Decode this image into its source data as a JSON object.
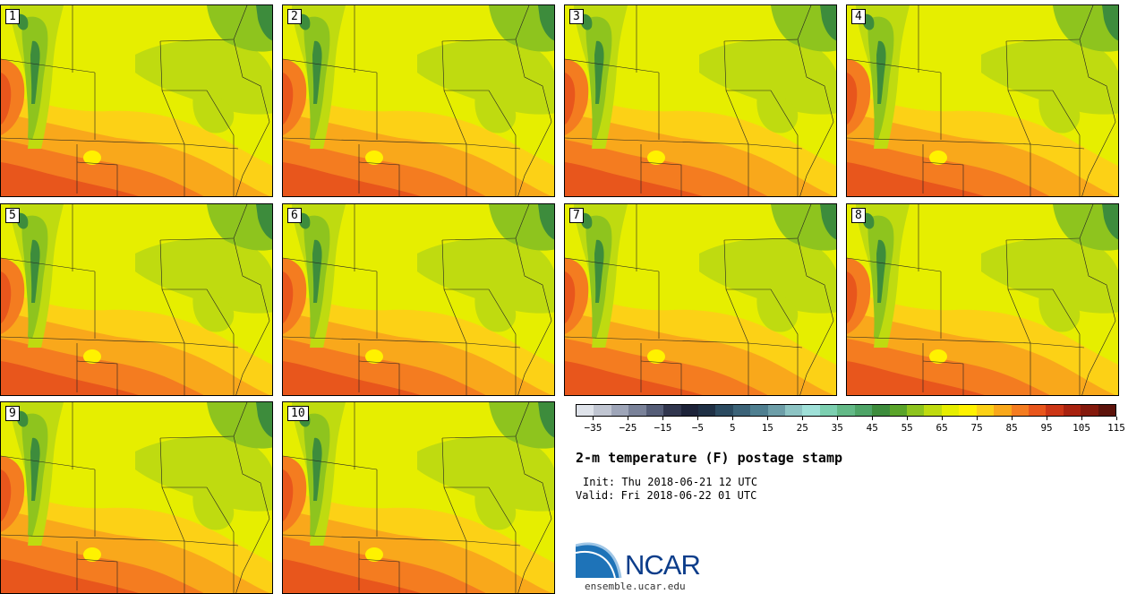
{
  "members": [
    "1",
    "2",
    "3",
    "4",
    "5",
    "6",
    "7",
    "8",
    "9",
    "10"
  ],
  "colors": {
    "palette": [
      "#dfe3ea",
      "#c0c5d1",
      "#9ea5b8",
      "#7a8299",
      "#555d77",
      "#31364e",
      "#1d2339",
      "#1f3045",
      "#2b4a60",
      "#3c6378",
      "#4f7f90",
      "#6d9ea8",
      "#8dc4c4",
      "#9fe0d8",
      "#7ccfb0",
      "#63b987",
      "#4ea467",
      "#3d8c3c",
      "#5aa42a",
      "#8ec41e",
      "#bfdb10",
      "#e6ee00",
      "#fff200",
      "#fcd116",
      "#f9a81b",
      "#f47c20",
      "#e8561c",
      "#cc3616",
      "#a8220f",
      "#84190c",
      "#5c130b"
    ],
    "terrain": {
      "green": "#3d8c3c",
      "mid_green": "#8ec41e",
      "yellow_green": "#bfdb10",
      "yellow": "#e6ee00",
      "light_yellow": "#fff200",
      "gold": "#fcd116",
      "orange": "#f9a81b",
      "dark_orange": "#f47c20",
      "red_orange": "#e8561c"
    }
  },
  "colorbar": {
    "ticks": [
      "−35",
      "−25",
      "−15",
      "−5",
      "5",
      "15",
      "25",
      "35",
      "45",
      "55",
      "65",
      "75",
      "85",
      "95",
      "105",
      "115"
    ]
  },
  "title": "2-m temperature (F) postage stamp",
  "init": "Init: Thu 2018-06-21 12 UTC",
  "valid": "Valid: Fri 2018-06-22 01 UTC",
  "logo": {
    "name": "NCAR",
    "site": "ensemble.ucar.edu"
  }
}
